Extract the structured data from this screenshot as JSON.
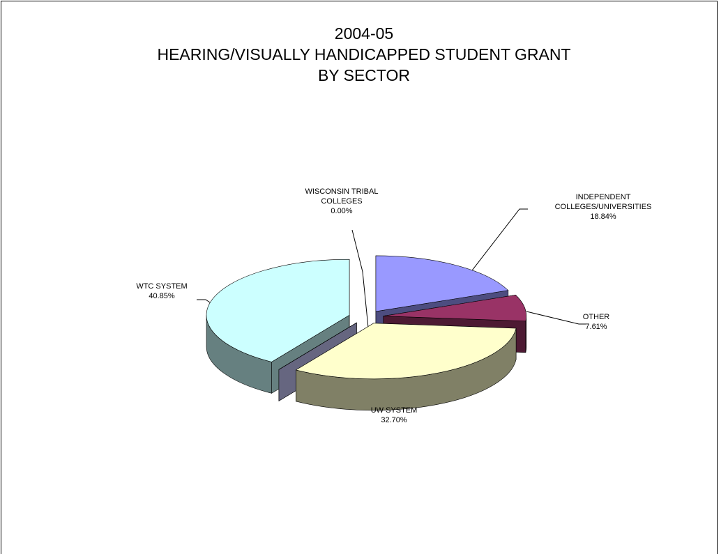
{
  "chart_data": {
    "type": "pie3d",
    "title": [
      "2004-05",
      "HEARING/VISUALLY HANDICAPPED STUDENT GRANT",
      "BY SECTOR"
    ],
    "categories": [
      "INDEPENDENT COLLEGES/UNIVERSITIES",
      "OTHER",
      "UW SYSTEM",
      "WISCONSIN TRIBAL COLLEGES",
      "WTC SYSTEM"
    ],
    "values": [
      18.84,
      7.61,
      32.7,
      0.0,
      40.85
    ],
    "value_labels": [
      "18.84%",
      "7.61%",
      "32.70%",
      "0.00%",
      "40.85%"
    ],
    "colors": [
      "#9999ff",
      "#993366",
      "#ffffcc",
      "#ccccff",
      "#ccffff"
    ]
  }
}
